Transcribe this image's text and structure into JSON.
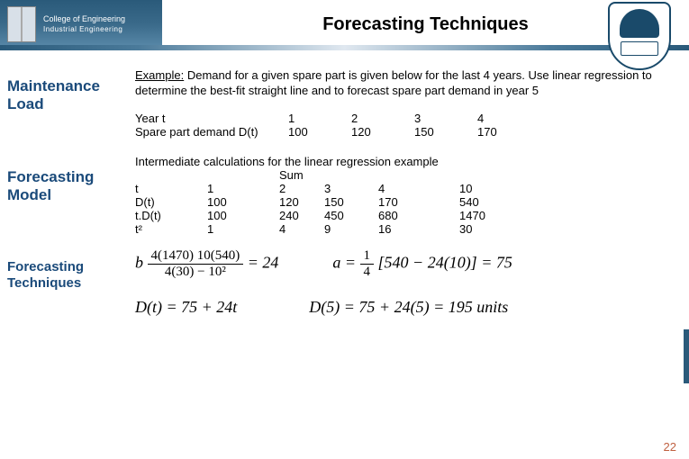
{
  "header": {
    "college": "College of Engineering",
    "dept": "Industrial Engineering",
    "title": "Forecasting Techniques"
  },
  "sidebar": {
    "items": [
      "Maintenance Load",
      "Forecasting Model",
      "Forecasting Techniques"
    ]
  },
  "example": {
    "label": "Example:",
    "text": "Demand for a given spare part is given below for the last 4 years. Use linear regression to determine the best-fit straight line and to forecast spare part demand in year 5"
  },
  "year_table": {
    "row1_label": "Year t",
    "row2_label": "Spare part demand D(t)",
    "years": [
      "1",
      "2",
      "3",
      "4"
    ],
    "demand": [
      "100",
      "120",
      "150",
      "170"
    ]
  },
  "calc": {
    "intro": "Intermediate calculations for the linear regression example",
    "sum_label": "Sum",
    "rows": [
      {
        "label": "t",
        "c1": "1",
        "c2": "2",
        "c3": "3",
        "c4": "4",
        "sum": "10"
      },
      {
        "label": "D(t)",
        "c1": "100",
        "c2": "120",
        "c3": "150",
        "c4": "170",
        "sum": "540"
      },
      {
        "label": "t.D(t)",
        "c1": "100",
        "c2": "240",
        "c3": "450",
        "c4": "680",
        "sum": "1470"
      },
      {
        "label": "t²",
        "c1": "1",
        "c2": "4",
        "c3": "9",
        "c4": "16",
        "sum": "30"
      }
    ]
  },
  "formulas": {
    "b_lhs": "b",
    "b_num": "4(1470)   10(540)",
    "b_den": "4(30) − 10²",
    "b_result": "= 24",
    "a_expr": "a =",
    "a_frac_num": "1",
    "a_frac_den": "4",
    "a_bracket": "[540 − 24(10)] = 75",
    "dt_expr": "D(t) = 75 + 24t",
    "d5_expr": "D(5) = 75 + 24(5) = 195 units"
  },
  "page": "22",
  "colors": {
    "brand_dark": "#1a4a6a",
    "brand_mid": "#2a5a7a",
    "sidebar_text": "#1a4a7a",
    "page_num": "#c06040"
  }
}
